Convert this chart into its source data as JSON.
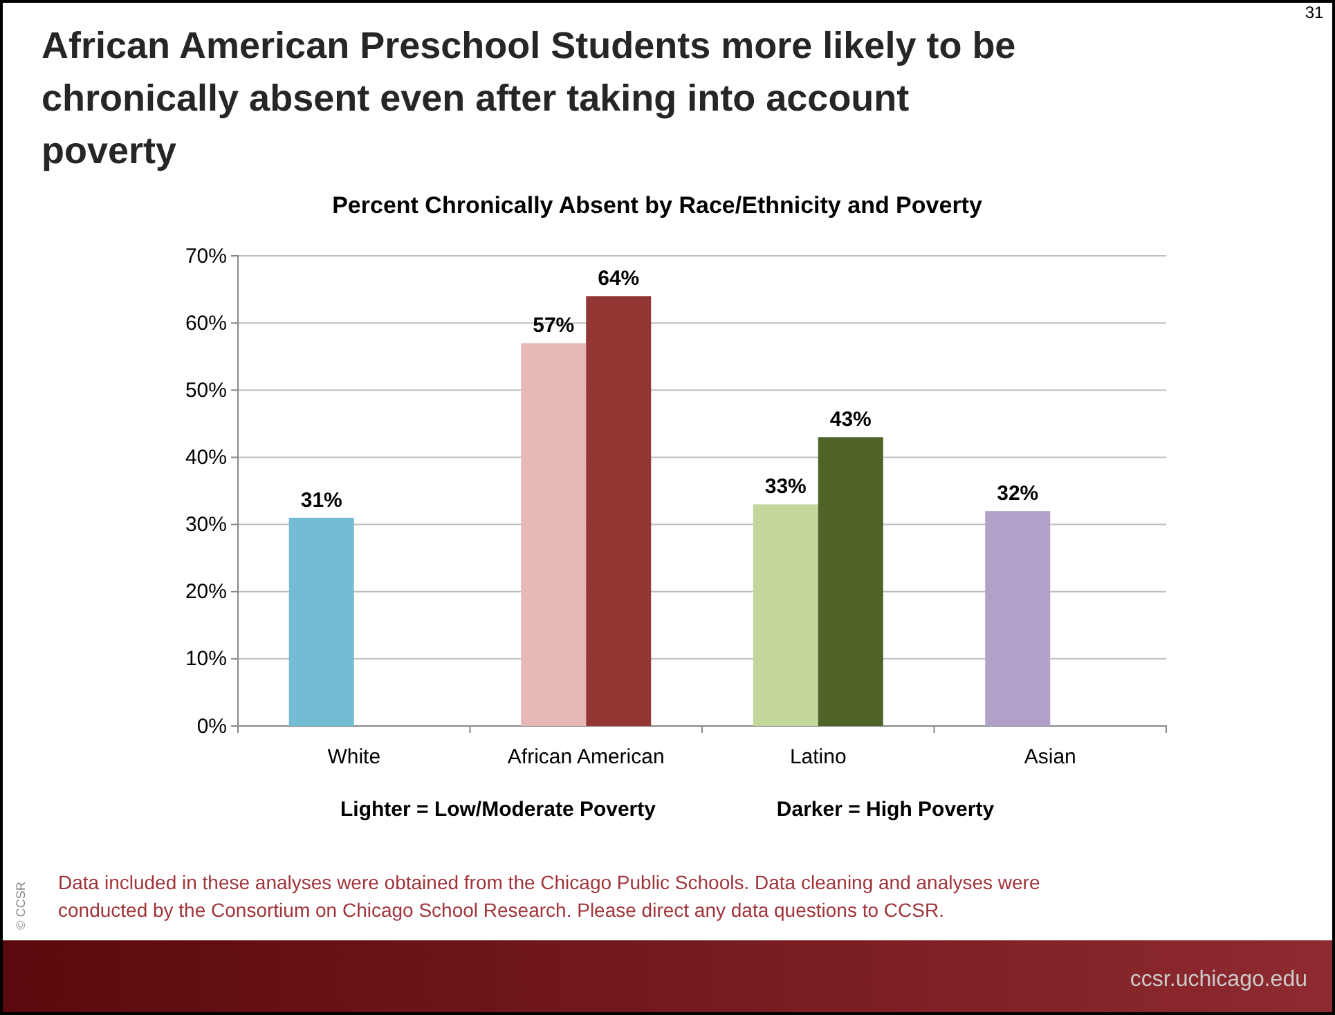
{
  "chart_data": {
    "type": "bar",
    "title": "African American Preschool Students more likely to be chronically absent even after taking into account poverty",
    "subtitle": "Percent Chronically Absent by Race/Ethnicity and Poverty",
    "categories": [
      "White",
      "African American",
      "Latino",
      "Asian"
    ],
    "series": [
      {
        "colors": [
          "#74bcd3",
          "#e6b8b7",
          "#c3d69b",
          "#b1a0c7"
        ],
        "values": [
          31,
          57,
          33,
          32
        ],
        "value_labels": [
          "31%",
          "57%",
          "33%",
          "32%"
        ]
      },
      {
        "colors": [
          null,
          "#943634",
          "#4f6228",
          null
        ],
        "values": [
          null,
          64,
          43,
          null
        ],
        "value_labels": [
          null,
          "64%",
          "43%",
          null
        ]
      }
    ],
    "ylim": [
      0,
      70
    ],
    "yticks": [
      {
        "value": 0,
        "label": "0%"
      },
      {
        "value": 10,
        "label": "10%"
      },
      {
        "value": 20,
        "label": "20%"
      },
      {
        "value": 30,
        "label": "30%"
      },
      {
        "value": 40,
        "label": "40%"
      },
      {
        "value": 50,
        "label": "50%"
      },
      {
        "value": 60,
        "label": "60%"
      },
      {
        "value": 70,
        "label": "70%"
      }
    ],
    "grid": "y",
    "annotations": [
      "Lighter = Low/Moderate Poverty",
      "Darker = High Poverty",
      "Data included in these analyses were obtained from the Chicago Public Schools. Data cleaning and analyses were conducted by the Consortium on Chicago School Research. Please direct any data questions to CCSR.",
      "© CCSR",
      "31",
      "ccsr.uchicago.edu"
    ]
  }
}
